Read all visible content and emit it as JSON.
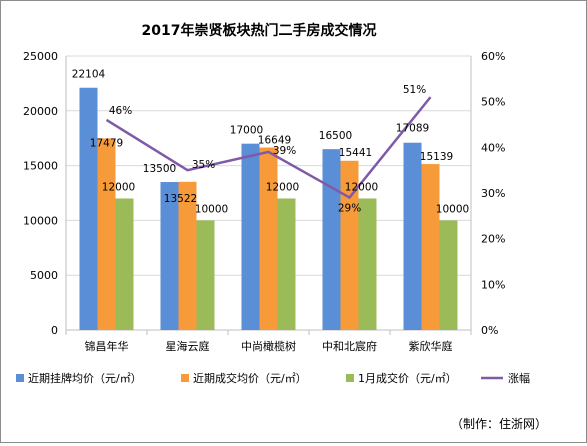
{
  "chart_data": {
    "type": "bar",
    "title": "2017年崇贤板块热门二手房成交情况",
    "categories": [
      "锦昌年华",
      "星海云庭",
      "中尚橄榄树",
      "中和北宸府",
      "紫欣华庭"
    ],
    "series": [
      {
        "name": "近期挂牌均价（元/㎡）",
        "color": "#5a8ed6",
        "values": [
          22104,
          13500,
          17000,
          16500,
          17089
        ]
      },
      {
        "name": "近期成交均价（元/㎡）",
        "color": "#f79a3a",
        "values": [
          17479,
          13522,
          16649,
          15441,
          15139
        ]
      },
      {
        "name": "1月成交价（元/㎡）",
        "color": "#9bbb59",
        "values": [
          12000,
          10000,
          12000,
          12000,
          10000
        ]
      }
    ],
    "line_series": {
      "name": "涨幅",
      "color": "#7f5aa8",
      "values": [
        46,
        35,
        39,
        29,
        51
      ],
      "labels": [
        "46%",
        "35%",
        "39%",
        "29%",
        "51%"
      ]
    },
    "ylim": [
      0,
      25000
    ],
    "yticks": [
      "0",
      "5000",
      "10000",
      "15000",
      "20000",
      "25000"
    ],
    "y2lim": [
      0,
      60
    ],
    "y2ticks": [
      "0%",
      "10%",
      "20%",
      "30%",
      "40%",
      "50%",
      "60%"
    ],
    "grid": true,
    "legend_position": "bottom",
    "credit": "（制作：住浙网）"
  }
}
